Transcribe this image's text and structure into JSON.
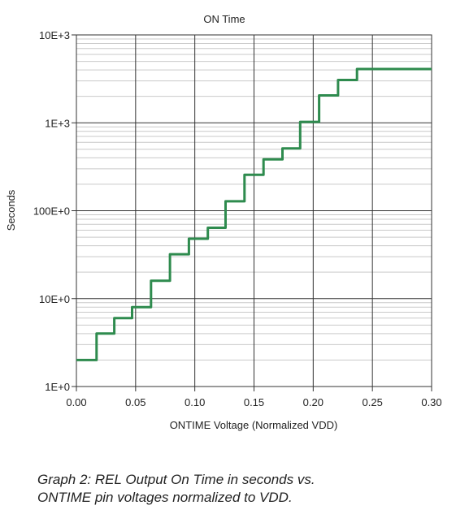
{
  "chart_data": {
    "type": "line",
    "title": "ON Time",
    "xlabel": "ONTIME Voltage (Normalized VDD)",
    "ylabel": "Seconds",
    "xlim": [
      0,
      0.3
    ],
    "ylim": [
      1,
      10000
    ],
    "yscale": "log",
    "grid": true,
    "x_ticks": [
      {
        "value": 0.0,
        "label": "0.00"
      },
      {
        "value": 0.05,
        "label": "0.05"
      },
      {
        "value": 0.1,
        "label": "0.10"
      },
      {
        "value": 0.15,
        "label": "0.15"
      },
      {
        "value": 0.2,
        "label": "0.20"
      },
      {
        "value": 0.25,
        "label": "0.25"
      },
      {
        "value": 0.3,
        "label": "0.30"
      }
    ],
    "y_ticks": [
      {
        "value": 1,
        "label": "1E+0"
      },
      {
        "value": 10,
        "label": "10E+0"
      },
      {
        "value": 100,
        "label": "100E+0"
      },
      {
        "value": 1000,
        "label": "1E+3"
      },
      {
        "value": 10000,
        "label": "10E+3"
      }
    ],
    "series": [
      {
        "color": "#2e8b4e",
        "steps": [
          {
            "x_start": 0.0,
            "x_end": 0.017,
            "y": 2.0
          },
          {
            "x_start": 0.017,
            "x_end": 0.032,
            "y": 4.0
          },
          {
            "x_start": 0.032,
            "x_end": 0.047,
            "y": 6.0
          },
          {
            "x_start": 0.047,
            "x_end": 0.063,
            "y": 8.0
          },
          {
            "x_start": 0.063,
            "x_end": 0.079,
            "y": 16
          },
          {
            "x_start": 0.079,
            "x_end": 0.095,
            "y": 32
          },
          {
            "x_start": 0.095,
            "x_end": 0.111,
            "y": 48
          },
          {
            "x_start": 0.111,
            "x_end": 0.126,
            "y": 64
          },
          {
            "x_start": 0.126,
            "x_end": 0.142,
            "y": 128
          },
          {
            "x_start": 0.142,
            "x_end": 0.158,
            "y": 256
          },
          {
            "x_start": 0.158,
            "x_end": 0.174,
            "y": 384
          },
          {
            "x_start": 0.174,
            "x_end": 0.189,
            "y": 512
          },
          {
            "x_start": 0.189,
            "x_end": 0.205,
            "y": 1024
          },
          {
            "x_start": 0.205,
            "x_end": 0.221,
            "y": 2048
          },
          {
            "x_start": 0.221,
            "x_end": 0.237,
            "y": 3072
          },
          {
            "x_start": 0.237,
            "x_end": 0.3,
            "y": 4096
          }
        ]
      }
    ]
  },
  "caption": {
    "line1": "Graph 2: REL Output On Time in seconds vs.",
    "line2": "ONTIME pin voltages normalized to VDD."
  }
}
